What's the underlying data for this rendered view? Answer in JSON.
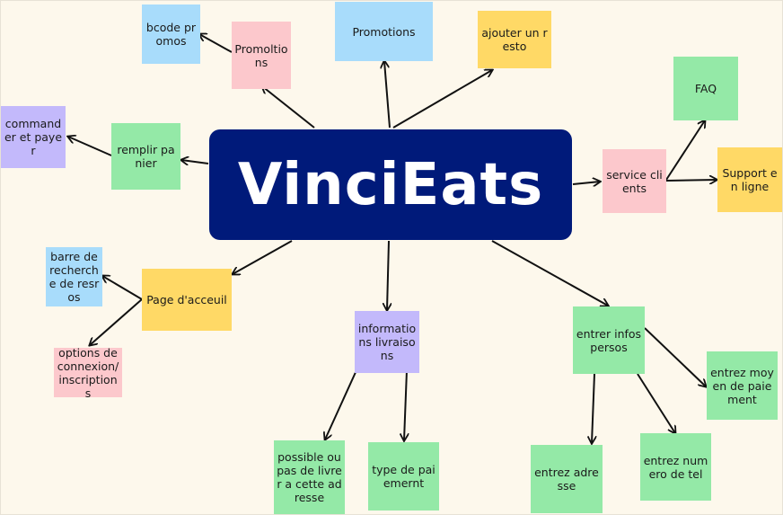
{
  "central": {
    "label": "VinciEats",
    "color": "#001a7a"
  },
  "colors": {
    "blue": "#a8dcfb",
    "pink": "#fcc8cc",
    "yellow": "#ffd966",
    "green": "#94e9a7",
    "purple": "#c3b9fb",
    "background": "#fdf8ec"
  },
  "nodes": {
    "bcode_promos": "bcode promos",
    "promoltions": "Promoltions",
    "promotions": "Promotions",
    "ajouter_resto": "ajouter un resto",
    "commander": "commander et payer",
    "remplir_panier": "remplir panier",
    "faq": "FAQ",
    "service_clients": "service clients",
    "support": "Support en ligne",
    "barre_recherche": "barre de recherche de resros",
    "page_accueil": "Page d'acceuil",
    "options_connexion": "options de connexion/inscriptions",
    "infos_livraisons": "informations livraisons",
    "possible_livrer": "possible ou pas de livrer a cette adresse",
    "type_paiement": "type de paiemernt",
    "infos_persos": "entrer infos persos",
    "moyen_paiement": "entrez moyen de paiement",
    "adresse": "entrez adresse",
    "numero_tel": "entrez numero de tel"
  }
}
